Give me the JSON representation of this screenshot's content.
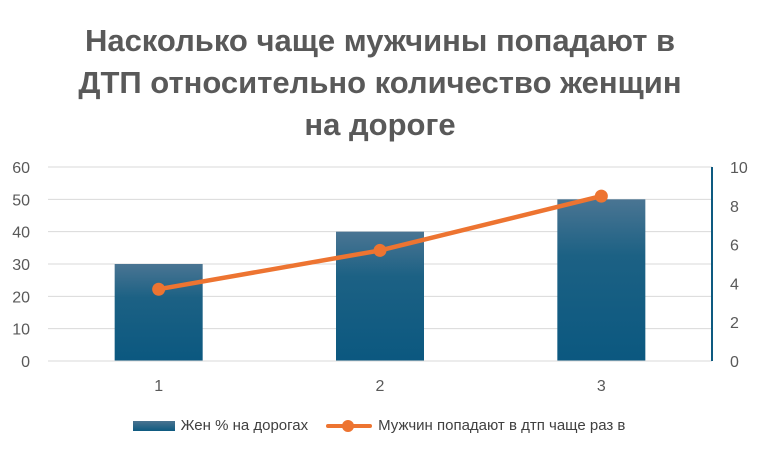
{
  "chart_data": {
    "type": "bar",
    "title": "Насколько чаще мужчины попадают в ДТП относительно количество женщин на дороге",
    "categories": [
      "1",
      "2",
      "3"
    ],
    "series": [
      {
        "name": "Жен % на дорогах",
        "kind": "bar",
        "axis": "left",
        "values": [
          30,
          40,
          50
        ],
        "color": "#1f5f85"
      },
      {
        "name": "Мужчин попадают в дтп чаще раз в",
        "kind": "line",
        "axis": "right",
        "values": [
          3.7,
          5.7,
          8.5
        ],
        "color": "#ed7431"
      }
    ],
    "y_left": {
      "min": 0,
      "max": 60,
      "ticks": [
        "0",
        "10",
        "20",
        "30",
        "40",
        "50",
        "60"
      ]
    },
    "y_right": {
      "min": 0,
      "max": 10,
      "ticks": [
        "0",
        "2",
        "4",
        "6",
        "8",
        "10"
      ]
    },
    "grid": true,
    "legend_position": "bottom"
  }
}
